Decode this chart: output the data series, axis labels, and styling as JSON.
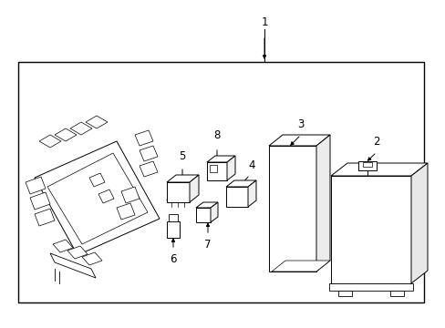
{
  "bg_color": "#ffffff",
  "line_color": "#000000",
  "fig_width": 4.89,
  "fig_height": 3.6,
  "dpi": 100,
  "label_font_size": 8.5
}
